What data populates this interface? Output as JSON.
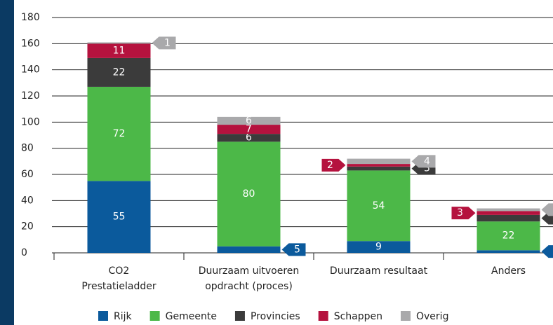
{
  "chart_data": {
    "type": "stacked_bar",
    "categories": [
      "CO2 Prestatieladder",
      "Duurzaam uitvoeren opdracht (proces)",
      "Duurzaam resultaat",
      "Anders"
    ],
    "series": [
      {
        "name": "Rijk",
        "color": "#0b5a9c",
        "values": [
          55,
          5,
          9,
          2
        ]
      },
      {
        "name": "Gemeente",
        "color": "#4cb848",
        "values": [
          72,
          80,
          54,
          22
        ]
      },
      {
        "name": "Provincies",
        "color": "#3b3b3b",
        "values": [
          22,
          6,
          3,
          5
        ]
      },
      {
        "name": "Schappen",
        "color": "#b5123e",
        "values": [
          11,
          7,
          2,
          3
        ]
      },
      {
        "name": "Overig",
        "color": "#a9a9ab",
        "values": [
          1,
          6,
          4,
          2
        ]
      }
    ],
    "ylim": [
      0,
      180
    ],
    "yticks": [
      0,
      20,
      40,
      60,
      80,
      100,
      120,
      140,
      160,
      180
    ],
    "grid": true
  }
}
